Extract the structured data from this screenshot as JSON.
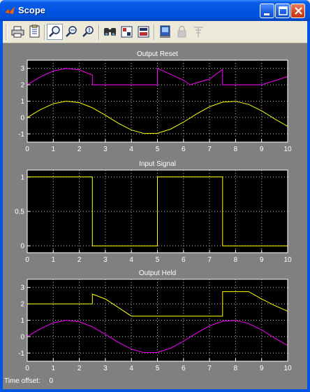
{
  "window": {
    "title": "Scope"
  },
  "toolbar": {
    "buttons": [
      {
        "name": "print-button",
        "icon": "printer-icon"
      },
      {
        "name": "parameters-button",
        "icon": "parameters-icon"
      },
      {
        "name": "zoom-button",
        "icon": "magnifier-icon",
        "pressed": true
      },
      {
        "name": "zoom-x-button",
        "icon": "zoom-x-icon"
      },
      {
        "name": "zoom-y-button",
        "icon": "zoom-y-icon"
      },
      {
        "name": "autoscale-button",
        "icon": "binoculars-icon"
      },
      {
        "name": "save-axes-button",
        "icon": "save-axes-icon"
      },
      {
        "name": "restore-axes-button",
        "icon": "restore-axes-icon"
      },
      {
        "name": "floating-scope-button",
        "icon": "floating-scope-icon"
      },
      {
        "name": "lock-axes-button",
        "icon": "lock-icon",
        "disabled": true
      },
      {
        "name": "signal-selection-button",
        "icon": "signal-selection-icon",
        "disabled": true
      }
    ]
  },
  "chart_data": [
    {
      "type": "line",
      "title": "Output Reset",
      "xlim": [
        0,
        10
      ],
      "ylim": [
        -1.5,
        3.5
      ],
      "xticks": [
        0,
        1,
        2,
        3,
        4,
        5,
        6,
        7,
        8,
        9,
        10
      ],
      "yticks": [
        -1,
        0,
        1,
        2,
        3
      ],
      "grid": true,
      "series": [
        {
          "color": "#ff00ff",
          "x": [
            0,
            0.5,
            1,
            1.5,
            2,
            2.5,
            2.5,
            3,
            4,
            5,
            5,
            6,
            6.25,
            7,
            7.5,
            7.5,
            8,
            9,
            10
          ],
          "y": [
            2,
            2.48,
            2.84,
            3,
            2.91,
            2.6,
            2,
            2,
            2,
            2,
            3,
            2.28,
            2,
            2.35,
            2.94,
            2,
            2,
            2,
            2.5
          ]
        },
        {
          "color": "#ffff00",
          "x": [
            0,
            0.5,
            1,
            1.5,
            2,
            2.5,
            3,
            3.5,
            4,
            4.5,
            5,
            5.5,
            6,
            6.5,
            7,
            7.5,
            8,
            8.5,
            9,
            9.5,
            10
          ],
          "y": [
            0,
            0.48,
            0.84,
            1,
            0.91,
            0.6,
            0.14,
            -0.35,
            -0.76,
            -0.98,
            -0.96,
            -0.71,
            -0.28,
            0.22,
            0.66,
            0.94,
            0.99,
            0.8,
            0.41,
            -0.08,
            -0.54
          ]
        }
      ]
    },
    {
      "type": "line",
      "title": "Input Signal",
      "xlim": [
        0,
        10
      ],
      "ylim": [
        -0.1,
        1.1
      ],
      "xticks": [
        0,
        1,
        2,
        3,
        4,
        5,
        6,
        7,
        8,
        9,
        10
      ],
      "yticks": [
        0,
        0.5,
        1
      ],
      "grid": true,
      "series": [
        {
          "color": "#ffff00",
          "x": [
            0,
            2.5,
            2.5,
            5,
            5,
            7.5,
            7.5,
            10
          ],
          "y": [
            1,
            1,
            0,
            0,
            1,
            1,
            0,
            0
          ]
        }
      ]
    },
    {
      "type": "line",
      "title": "Output Held",
      "xlim": [
        0,
        10
      ],
      "ylim": [
        -1.5,
        3.5
      ],
      "xticks": [
        0,
        1,
        2,
        3,
        4,
        5,
        6,
        7,
        8,
        9,
        10
      ],
      "yticks": [
        -1,
        0,
        1,
        2,
        3
      ],
      "grid": true,
      "series": [
        {
          "color": "#ffff00",
          "x": [
            0,
            2.5,
            2.5,
            3,
            4,
            5,
            6,
            7,
            7.5,
            7.5,
            8,
            8.5,
            9,
            9.5,
            10
          ],
          "y": [
            2,
            2,
            2.6,
            2.3,
            1.25,
            1.25,
            1.25,
            1.25,
            1.25,
            2.75,
            2.75,
            2.75,
            2.3,
            1.9,
            1.55
          ]
        },
        {
          "color": "#ff00ff",
          "x": [
            0,
            0.5,
            1,
            1.5,
            2,
            2.5,
            3,
            3.5,
            4,
            4.5,
            5,
            5.5,
            6,
            6.5,
            7,
            7.5,
            8,
            8.5,
            9,
            9.5,
            10
          ],
          "y": [
            0,
            0.48,
            0.84,
            1,
            0.91,
            0.6,
            0.14,
            -0.35,
            -0.76,
            -0.98,
            -0.96,
            -0.71,
            -0.28,
            0.22,
            0.66,
            0.94,
            0.99,
            0.8,
            0.41,
            -0.08,
            -0.54
          ]
        }
      ]
    }
  ],
  "status": {
    "label": "Time offset:",
    "value": "0"
  }
}
